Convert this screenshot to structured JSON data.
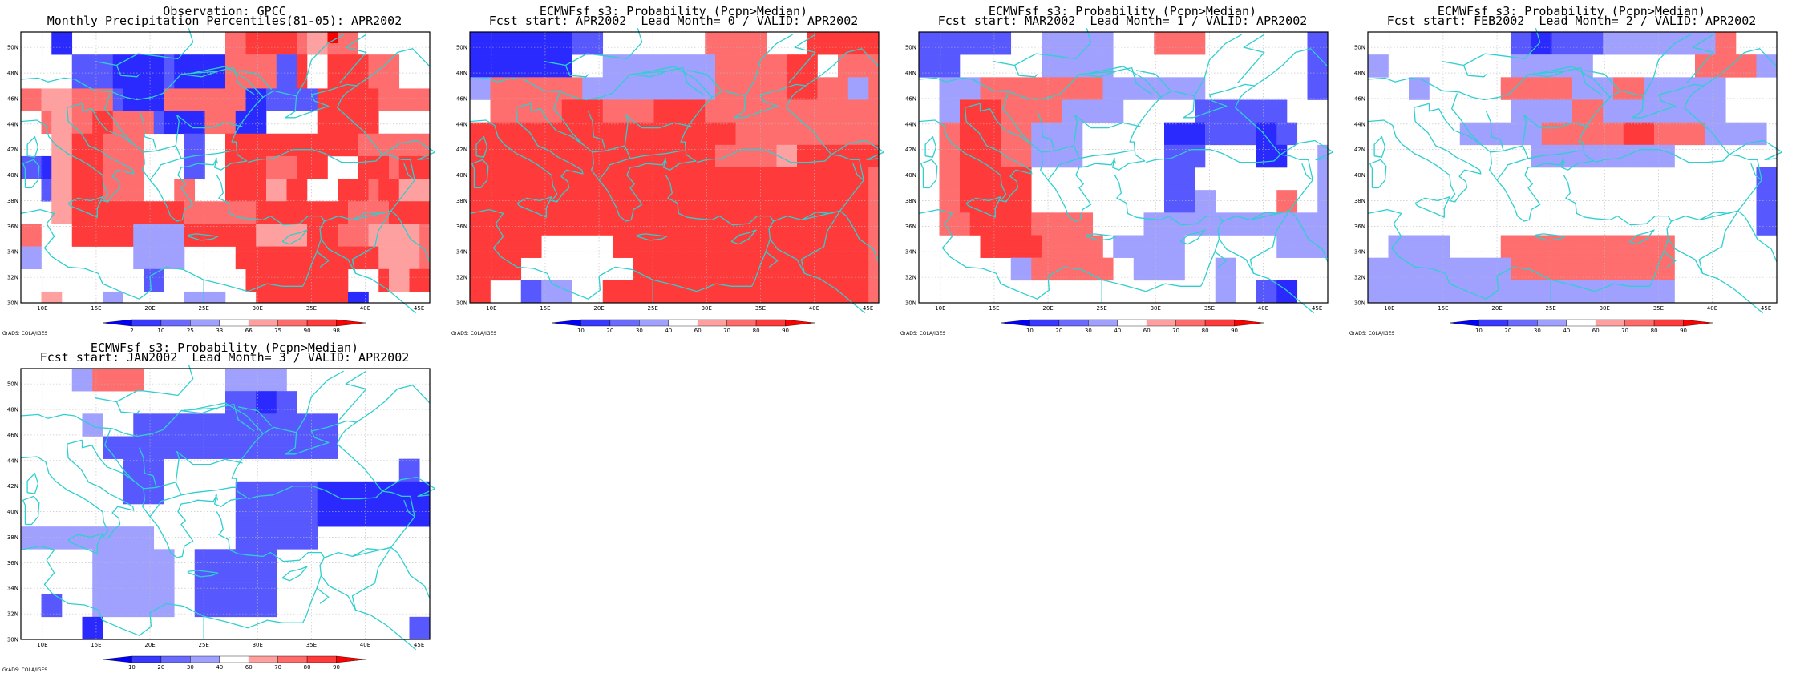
{
  "panels": [
    {
      "title1": "Observation: GPCC",
      "title2": "Monthly Precipitation Percentiles(81-05): APR2002",
      "colorbar_labels": [
        "2",
        "10",
        "25",
        "33",
        "66",
        "75",
        "90",
        "98"
      ],
      "credit": "GrADS: COLA/IGES",
      "grid": [
        "WWWDDWWWWWWWWWWWWWWWMMRRRRRMXXSMMWWWWWWW",
        "WWWDDWWWWWWWWWWWWWWWMMRRRRRMXXMMMWWWWWWW",
        "WWWWWLLLLDDDDDLDDDDDMMMMMLLRWWRRRRMMMWWW",
        "WWWWWLLLLDDDDDLDDDDDMMMMMLLRWWRRRRMMMWWW",
        "WWWWWLLLLDDDDDLDDDDDMMMMMLLRWWRRRRMMMWWW",
        "MMXXXMMMMLDDDDMMMMMMMMDDLLLLLRRRRRRMMMMM",
        "MMXXXMMMMLDDDDMMMMMMMMDDLLLLLRRRRRRMMMMM",
        "WWMXXMMRRMMMMLDDDDMMMDDDWWWWWRRRRRRWWWWW",
        "WWMXXMMRRMMMMLDDDDMMMDDDWWWWWRRRRRRWWWWW",
        "WWWXXRRRMMMMWWWWLLWWRRRRRRRRRRRRRMMMMMMM",
        "WWWXXRRRMMMMWWWWLLWWRRRRRRRRRRRRRMMMMMMM",
        "LLDXXRRRMMMMWWWWLLWWRRRRMMMRRRWWWRRRMRRR",
        "LLDXXRRRMMMMWWWWLLWWRRRRMMMRRRWWWRRRMRRR",
        "WWLXXRRRMMMMWWWMMWWWRRRRXXRRWWWRRRMRRXXX",
        "WWLXXRRRMMMMWWWMMWWWRRRRXXRRWWWRRRMRRXXX",
        "WWWXXRRRRRRRRRRRMMMMMMMRRRRRRRRRMMMMRRRR",
        "WWWXXRRRRRRRRRRRMMMMMMMRRRRRRRRRMMMMRRRR",
        "MMWWWRRRRRRPPPPPRRRRRRRXXXXXRRRMMMXXXXXM",
        "MMWWWRRRRRRPPPPPRRRRRRRXXXXXRRRMMMXXXXXM",
        "PPWWWWWWWWWPPPPPWWWWWRRRRRRRRRRRRRRXXXXM",
        "PPWWWWWWWWWPPPPPWWWWWRRRRRRRRRRRRRRXXXXM",
        "WWWWWWWWWWWWLLWWWWWWWWRRRRRRRRRRWWWRXXRR",
        "WWWWWWWWWWWWLLWWWWWWWWRRRRRRRRRRWWWRXXRR",
        "WWXXWWWWPPWWWWWWPPPPWWWRRRRRRRRRDDWWWWWW"
      ]
    },
    {
      "title1": "ECMWFsf s3: Probability (Pcpn>Median)",
      "title2": "Fcst start: APR2002  Lead Month= 0 / VALID: APR2002",
      "colorbar_labels": [
        "10",
        "20",
        "30",
        "40",
        "60",
        "70",
        "80",
        "90"
      ],
      "credit": "GrADS: COLA/IGES",
      "grid": [
        "DDDDDDDDDDLLLWWWWWWWWWWMMMMMMWWWWRRRRRRR",
        "DDDDDDDDDDLLLWWWWWWWWWWMMMMMMWWWWRRRRRRR",
        "DDDDDDDDDDWWWPPPPPPPPPPPMMMMMMMRRRWWMMMM",
        "DDDDDDDDDDWWWPPPPPPPPPPPMMMMMMMRRRWWMMMM",
        "PPMMMMMMMMMPPPPPPPPPPPPPMMMMMMMRRRMMMPPM",
        "PPMMMMMMMMMPPPPPPPPPPPPPMMMMMMMRRRMMMPPM",
        "WWMMMMMMMRRRRMMMMMRRRRRMMMMMMMMMMMMMMMMM",
        "WWMMMMMMMRRRRMMMMMRRRRRMMMMMMMMMMMMMMMMM",
        "RRRRRRRRRRRRRRRRRRRRRRRRRRMMMMMMMMMMMMMM",
        "RRRRRRRRRRRRRRRRRRRRRRRRRRMMMMMMMMMMMMMM",
        "RRRRRRRRRRRRRRRRRRRRRRRRMMMMMMXXRRRRRRRR",
        "RRRRRRRRRRRRRRRRRRRRRRRRMMMMMMXXRRRRRRRR",
        "RRRRRRRRRRRRRRRRRRRRRRRRRRRRRRRRRRRRRRRM",
        "RRRRRRRRRRRRRRRRRRRRRRRRRRRRRRRRRRRRRRRM",
        "RRRRRRRRRRRRRRRRRRRRRRRRRRRRRRRRRRRRRRRM",
        "RRRRRRRRRRRRRRRRRRRRRRRRRRRRRRRRRRRRRRRM",
        "RRRRRRRRRRRRRRRRRRRRRRRRRRRRRRRRRRRRRRRM",
        "RRRRRRRRRRRRRRRRRRRRRRRRRRRRRRRRRRRRRRRM",
        "RRRRRRRWWWWWWWRRRRRRRRRRRRRRRRRRRRRRRRRM",
        "RRRRRRRWWWWWWWRRRRRRRRRRRRRRRRRRRRRRRRRM",
        "RRRRRWWWWWWWWWWWRRRRRRRRRRRRRRRRRRRRRRRM",
        "RRRRRWWWWWWWWWWWRRRRRRRRRRRRRRRRRRRRRRRM",
        "RRWWWLLPPPWWWRRRRRRRRRRRRRRRRRRRRRRRRRRM",
        "RRWWWLLPPPWWWRRRRRRRRRRRRRRRRRRRRRRRRRRM"
      ]
    },
    {
      "title1": "ECMWFsf s3: Probability (Pcpn>Median)",
      "title2": "Fcst start: MAR2002  Lead Month= 1 / VALID: APR2002",
      "colorbar_labels": [
        "10",
        "20",
        "30",
        "40",
        "60",
        "70",
        "80",
        "90"
      ],
      "credit": "GrADS: COLA/IGES",
      "grid": [
        "LLLLLLLLLWWWPPPPPPPWWWWMMMMMWWWWWWWWWWLL",
        "LLLLLLLLLWWWPPPPPPPWWWWMMMMMWWWWWWWWWWLL",
        "LLLLWWWWWWWWPPPPPPPWWWWWWWWWWWWWWWWWWWLL",
        "LLLLWWWWWWWWPPPPPPPWWWWWWWWWWWWWWWWWWWLL",
        "WWPPPPMMMMMMMMMMMMPPPPPPPPPPWWWWWWWWWWLL",
        "WWPPPPMMMMMMMMMMMMPPPPPPPPPPWWWWWWWWWWLL",
        "WWPPRRRRMMMMMMPPPPPPWWWWWWWLLLLLLLLLWWWW",
        "WWPPRRRRMMMMMMPPPPPPWWWWWWWLLLLLLLLLWWWW",
        "WWMMRRRRMMMPPPPPWWWWWWWWDDDDLLLLLDDLLWWW",
        "WWMMRRRRMMMPPPPPWWWWWWWWDDDDLLLLLDDLLWWW",
        "WWMMRRRRMMMPPPPPWWWWWWWWLLLLWWWWWDDDWWWP",
        "WWMMRRRRMMMPPPPPWWWWWWWWLLLLWWWWWDDDWWWP",
        "WWMMRRRRRRRWWWWWWWWWWWWWLLLWWWWWWWWWWWWP",
        "WWMMRRRRRRRWWWWWWWWWWWWWLLLWWWWWWWWWWWWP",
        "WWMMRRRRRRRWWWWWWWWWWWWWLLLPPWWWWWWMMWWP",
        "WWMMRRRRRRRWWWWWWWWWWWWWLLLPPWWWWWWMMWWP",
        "WWMMMRRRRRRMMMMMMWWWWWPPPPPPPPPPPPPPPPPP",
        "WWMMMRRRRRRMMMMMMWWWWWPPPPPPPPPPPPPPPPPP",
        "WWWWWWRRRRRRMMMMMMWPPPPPPPWWWWWWWWWPPPPP",
        "WWWWWWRRRRRRMMMMMMWPPPPPPPWWWWWWWWWPPPPP",
        "WWWWWWWWWPPMMMMMMMMWWPPPPPWWWPPWWWWWWWWW",
        "WWWWWWWWWPPMMMMMMMMWWPPPPPWWWPPWWWWWWWWW",
        "WWWWWWWWWWWWWWWWWWWWWWWWWWWWWPPWWLLDDWWW",
        "WWWWWWWWWWWWWWWWWWWWWWWWWWWWWPPWWLLDDWWW"
      ]
    },
    {
      "title1": "ECMWFsf s3: Probability (Pcpn>Median)",
      "title2": "Fcst start: FEB2002  Lead Month= 2 / VALID: APR2002",
      "colorbar_labels": [
        "10",
        "20",
        "30",
        "40",
        "60",
        "70",
        "80",
        "90"
      ],
      "credit": "GrADS: COLA/IGES",
      "grid": [
        "WWWWWWWWWWWWWWLLDDLLLLLPPPPPPPPPPPMMWWWW",
        "WWWWWWWWWWWWWWLLDDLLLLLPPPPPPPPPPPMMWWWW",
        "PPWWWWWWWWWWWWPPPPPPPPWWWWWWWWWWMMMMMMPP",
        "PPWWWWWWWWWWWWPPPPPPPPWWWWWWWWWWMMMMMMPP",
        "WWWWPPWWWWWWWMMMMMMMPPPPMMMPPPPPPPPWWWWW",
        "WWWWPPWWWWWWWMMMMMMMPPPPMMMPPPPPPPPWWWWW",
        "WWWWWWWWWWWWWWPPPPPPMMMPPPPPPPPPPPPWWWWW",
        "WWWWWWWWWWWWWWPPPPPPMMMPPPPPPPPPPPPWWWWW",
        "WWWWWWWWWPPPPPPPPMMMMMMMMRRRMMMMMPPPPPPW",
        "WWWWWWWWWPPPPPPPPMMMMMMMMRRRMMMMMPPPPPPW",
        "WWWWWWWWWWWWWWWWPPPPPPPPPPPPPPWWWWWWWWWW",
        "WWWWWWWWWWWWWWWWPPPPPPPPPPPPPPWWWWWWWWWW",
        "WWWWWWWWWWWWWWWWWWWWWWWWWWWWWWWWWWWWWWLL",
        "WWWWWWWWWWWWWWWWWWWWWWWWWWWWWWWWWWWWWWLL",
        "WWWWWWWWWWWWWWWWWWWWWWWWWWWWWWWWWWWWWWLL",
        "WWWWWWWWWWWWWWWWWWWWWWWWWWWWWWWWWWWWWWLL",
        "WWWWWWWWWWWWWWWWWWWWWWWWWWWWWWWWWWWWWWLL",
        "WWWWWWWWWWWWWWWWWWWWWWWWWWWWWWWWWWWWWWLL",
        "WWPPPPPPWWWWWMMMMMMMMMMMMMMMMMWWWWWWWWWW",
        "WWPPPPPPWWWWWMMMMMMMMMMMMMMMMMWWWWWWWWWW",
        "PPPPPPPPPPPPPPMMMMMMMMMMMMMMMMWWWWWWWWWW",
        "PPPPPPPPPPPPPPMMMMMMMMMMMMMMMMWWWWWWWWWW",
        "PPPPPPPPPPPPPPPPPPPPPPPPPPPPPPWWWWWWWWWW",
        "PPPPPPPPPPPPPPPPPPPPPPPPPPPPPPWWWWWWWWWW"
      ]
    },
    {
      "title1": "ECMWFsf s3: Probability (Pcpn>Median)",
      "title2": "Fcst start: JAN2002  Lead Month= 3 / VALID: APR2002",
      "colorbar_labels": [
        "10",
        "20",
        "30",
        "40",
        "60",
        "70",
        "80",
        "90"
      ],
      "credit": "GrADS: COLA/IGES",
      "grid": [
        "WWWWWPPMMMMMWWWWWWWWPPPPPPWWWWWWWWWWWWWW",
        "WWWWWPPMMMMMWWWWWWWWPPPPPPWWWWWWWWWWWWWW",
        "WWWWWWWWWWWWWWWWWWWWLLLDDLLWWWWWWWWWWWWW",
        "WWWWWWWWWWWWWWWWWWWWLLLDDLLWWWWWWWWWWWWW",
        "WWWWWWPPWWWLLLLLLLLLLLLLLLLLLLLWWWWWWWWW",
        "WWWWWWPPWWWLLLLLLLLLLLLLLLLLLLLWWWWWWWWW",
        "WWWWWWWWLLLLLLLLLLLLLLLLLLLLLLLWWWWWWWWW",
        "WWWWWWWWLLLLLLLLLLLLLLLLLLLLLLLWWWWWWWWW",
        "WWWWWWWWWWLLLLWWWWWWWWWWWWWWWWWWWWWWWLLW",
        "WWWWWWWWWWLLLLWWWWWWWWWWWWWWWWWWWWWWWLLW",
        "WWWWWWWWWWLLLLWWWWWWWLLLLLLLLDDDDDDDDDDD",
        "WWWWWWWWWWLLLLWWWWWWWLLLLLLLLDDDDDDDDDDD",
        "WWWWWWWWWWWWWWWWWWWWWLLLLLLLLDDDDDDDDDDD",
        "WWWWWWWWWWWWWWWWWWWWWLLLLLLLLDDDDDDDDDDD",
        "PPPPPPPPPPPPPWWWWWWWWLLLLLLLLWWWWWWWWWWW",
        "PPPPPPPPPPPPPWWWWWWWWLLLLLLLLWWWWWWWWWWW",
        "WWWWWWWPPPPPPPPWWLLLLLLLLWWWWWWWWWWWWWWW",
        "WWWWWWWPPPPPPPPWWLLLLLLLLWWWWWWWWWWWWWWW",
        "WWWWWWWPPPPPPPPWWLLLLLLLLWWWWWWWWWWWWWWW",
        "WWWWWWWPPPPPPPPWWLLLLLLLLWWWWWWWWWWWWWWW",
        "WWLLWWWPPPPPPPPWWLLLLLLLLWWWWWWWWWWWWWWW",
        "WWLLWWWPPPPPPPPWWLLLLLLLLWWWWWWWWWWWWWWW",
        "WWWWWWDDWWWWWWWWWWWWWWWWWWWWWWWWWWWWWWLL",
        "WWWWWWDDWWWWWWWWWWWWWWWWWWWWWWWWWWWWWWLL"
      ]
    }
  ],
  "map": {
    "lat_labels": [
      "50N",
      "48N",
      "46N",
      "44N",
      "42N",
      "40N",
      "38N",
      "36N",
      "34N",
      "32N",
      "30N"
    ],
    "lon_labels": [
      "10E",
      "15E",
      "20E",
      "25E",
      "30E",
      "35E",
      "40E",
      "45E"
    ],
    "coastline_color": "#2fcfcf",
    "grid_line_color": "#bbbbbb",
    "colorbar_colors": [
      "#0000ff",
      "#3838ff",
      "#6a6aff",
      "#a0a0ff",
      "#ffffff",
      "#ffa0a0",
      "#ff6a6a",
      "#ff3a3a",
      "#ff0000"
    ],
    "cell_colors": {
      "D": "#2a2aff",
      "L": "#5858ff",
      "P": "#a0a0ff",
      "W": "#ffffff",
      "X": "#ffa0a0",
      "M": "#ff6e6e",
      "R": "#ff3a3a",
      "S": "#ff0000",
      "K": "#0000ff"
    }
  }
}
